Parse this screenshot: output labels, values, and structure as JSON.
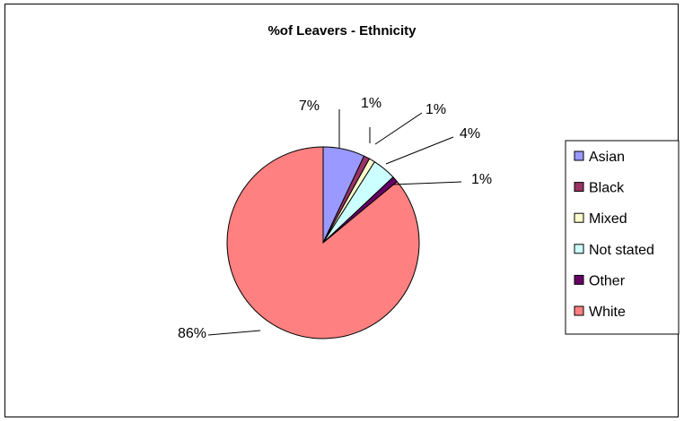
{
  "chart_data": {
    "type": "pie",
    "title": "%of Leavers - Ethnicity",
    "categories": [
      "Asian",
      "Black",
      "Mixed",
      "Not stated",
      "Other",
      "White"
    ],
    "values": [
      7,
      1,
      1,
      4,
      1,
      86
    ],
    "labels": [
      "7%",
      "1%",
      "1%",
      "4%",
      "1%",
      "86%"
    ],
    "colors": [
      "#9999FF",
      "#993366",
      "#FFFFCC",
      "#CCFFFF",
      "#660066",
      "#FF8080"
    ],
    "legend": {
      "placement": "right"
    },
    "label_lines": true
  }
}
